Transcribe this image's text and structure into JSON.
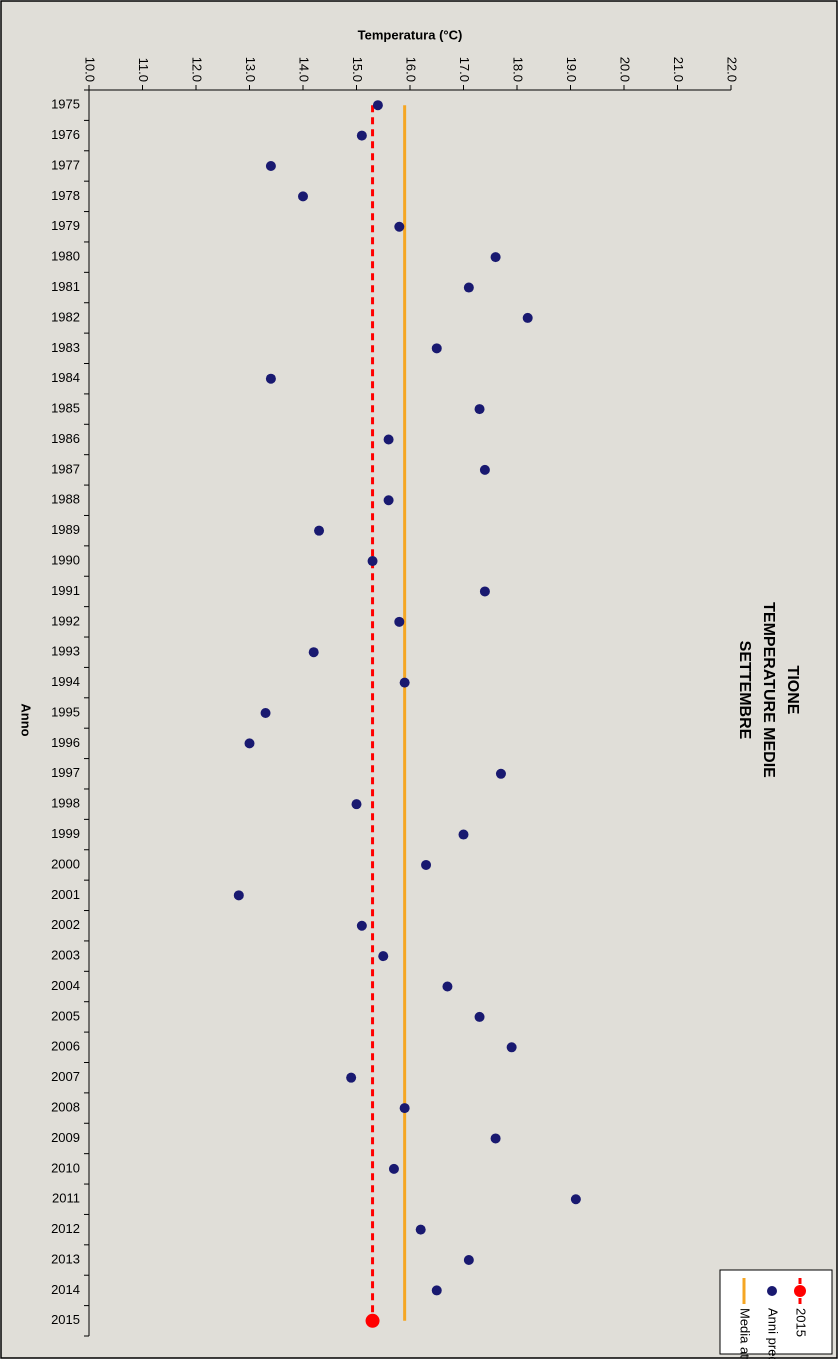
{
  "chart_data": {
    "type": "scatter",
    "title": [
      "TIONE",
      "TEMPERATURE MEDIE",
      "SETTEMBRE"
    ],
    "xlabel": "Temperatura (°C)",
    "ylabel": "Anno",
    "categories": [
      1975,
      1976,
      1977,
      1978,
      1979,
      1980,
      1981,
      1982,
      1983,
      1984,
      1985,
      1986,
      1987,
      1988,
      1989,
      1990,
      1991,
      1992,
      1993,
      1994,
      1995,
      1996,
      1997,
      1998,
      1999,
      2000,
      2001,
      2002,
      2003,
      2004,
      2005,
      2006,
      2007,
      2008,
      2009,
      2010,
      2011,
      2012,
      2013,
      2014,
      2015
    ],
    "xlim": [
      10,
      22
    ],
    "xticks": [
      {
        "value": 10,
        "label": "10.0"
      },
      {
        "value": 11,
        "label": "11.0"
      },
      {
        "value": 12,
        "label": "12.0"
      },
      {
        "value": 13,
        "label": "13.0"
      },
      {
        "value": 14,
        "label": "14.0"
      },
      {
        "value": 15,
        "label": "15.0"
      },
      {
        "value": 16,
        "label": "16.0"
      },
      {
        "value": 17,
        "label": "17.0"
      },
      {
        "value": 18,
        "label": "18.0"
      },
      {
        "value": 19,
        "label": "19.0"
      },
      {
        "value": 20,
        "label": "20.0"
      },
      {
        "value": 21,
        "label": "21.0"
      },
      {
        "value": 22,
        "label": "22.0"
      }
    ],
    "series": [
      {
        "name": "Anni precedenti",
        "color": "#191970",
        "values": [
          15.4,
          15.1,
          13.4,
          14.0,
          15.8,
          17.6,
          17.1,
          18.2,
          16.5,
          13.4,
          17.3,
          15.6,
          17.4,
          15.6,
          14.3,
          15.3,
          17.4,
          15.8,
          14.2,
          15.9,
          13.3,
          13.0,
          17.7,
          15.0,
          17.0,
          16.3,
          12.8,
          15.1,
          15.5,
          16.7,
          17.3,
          17.9,
          14.9,
          15.9,
          17.6,
          15.7,
          19.1,
          16.2,
          17.1,
          16.5,
          null
        ]
      },
      {
        "name": "2015",
        "color": "#ff0000",
        "value": 15.3
      },
      {
        "name": "Media attesa",
        "color": "#f5a623",
        "value": 15.9
      }
    ]
  }
}
